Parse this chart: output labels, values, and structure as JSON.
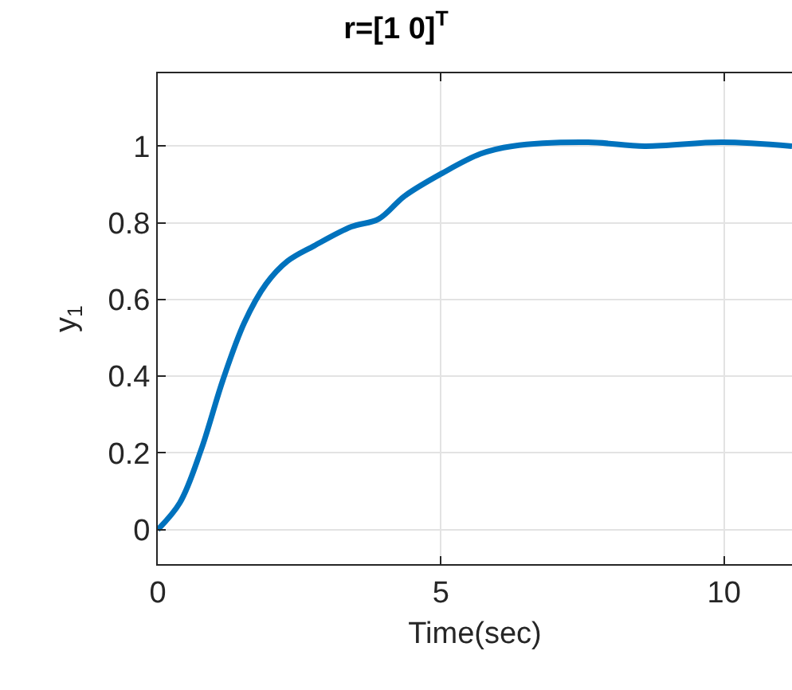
{
  "chart_data": {
    "type": "line",
    "title": "r=[1 0]$^{T}$",
    "xlabel": "Time(sec)",
    "ylabel": "y$_{1}$",
    "x": [
      0,
      0.39,
      0.77,
      1.15,
      1.53,
      1.91,
      2.29,
      2.76,
      3.42,
      3.9,
      4.36,
      5.03,
      5.7,
      6.26,
      7.6,
      8.6,
      9.96,
      11.2
    ],
    "series": [
      {
        "color": "#0072bd",
        "values": [
          0,
          0.07,
          0.21,
          0.39,
          0.54,
          0.64,
          0.7,
          0.74,
          0.79,
          0.81,
          0.87,
          0.93,
          0.98,
          1.0,
          1.01,
          1.0,
          1.01,
          1.0
        ]
      }
    ],
    "xlim": [
      0,
      11.2
    ],
    "xticks": [
      0,
      5,
      10
    ],
    "ylim": [
      -0.09,
      1.19
    ],
    "yticks": [
      0,
      0.2,
      0.4,
      0.6,
      0.8,
      1
    ],
    "grid": true,
    "marker": "none",
    "line_style": "solid"
  }
}
